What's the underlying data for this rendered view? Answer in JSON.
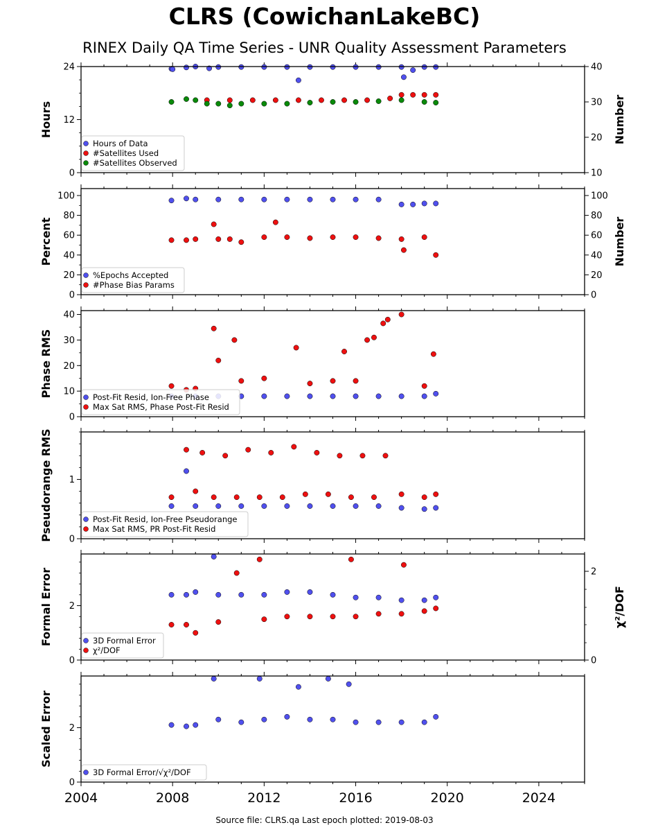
{
  "title": "CLRS (CowichanLakeBC)",
  "subtitle": "RINEX Daily QA Time Series - UNR Quality Assessment Parameters",
  "footer": "Source file: CLRS.qa Last epoch plotted: 2019-08-03",
  "colors": {
    "blue": "#5050ee",
    "red": "#ee1010",
    "green": "#0a8a0a",
    "edge": "#000000"
  },
  "chart_data": [
    {
      "type": "scatter",
      "xlim": [
        2004,
        2026
      ],
      "x_ticks": [
        2004,
        2008,
        2012,
        2016,
        2020,
        2024
      ],
      "x_tick_labels": [],
      "ylabel": "Hours",
      "ylim": [
        0,
        24
      ],
      "y_ticks": [
        0,
        12,
        24
      ],
      "y2label": "Number",
      "y2lim": [
        10,
        40
      ],
      "y2_ticks": [
        10,
        20,
        30,
        40
      ],
      "legend": "lower-left",
      "series": [
        {
          "name": "Hours of Data",
          "color": "blue",
          "axis": "left",
          "values": [
            [
              2007.95,
              23.5
            ],
            [
              2008.0,
              23.4
            ],
            [
              2008.6,
              23.8
            ],
            [
              2009.0,
              24.0
            ],
            [
              2009.6,
              23.6
            ],
            [
              2010.0,
              23.9
            ],
            [
              2011.0,
              23.9
            ],
            [
              2012.0,
              23.9
            ],
            [
              2013.0,
              23.9
            ],
            [
              2013.5,
              20.9
            ],
            [
              2014.0,
              23.9
            ],
            [
              2015.0,
              23.9
            ],
            [
              2016.0,
              23.9
            ],
            [
              2017.0,
              23.9
            ],
            [
              2018.0,
              23.9
            ],
            [
              2018.1,
              21.6
            ],
            [
              2018.5,
              23.2
            ],
            [
              2019.0,
              23.9
            ],
            [
              2019.5,
              23.9
            ]
          ]
        },
        {
          "name": "#Satellites Used",
          "color": "red",
          "axis": "right",
          "values": [
            [
              2009.5,
              30.5
            ],
            [
              2010.5,
              30.5
            ],
            [
              2011.5,
              30.5
            ],
            [
              2012.5,
              30.5
            ],
            [
              2013.5,
              30.5
            ],
            [
              2014.5,
              30.5
            ],
            [
              2015.5,
              30.5
            ],
            [
              2016.5,
              30.5
            ],
            [
              2017.5,
              31.0
            ],
            [
              2018.0,
              32.0
            ],
            [
              2018.5,
              32.0
            ],
            [
              2019.0,
              32.0
            ],
            [
              2019.5,
              32.0
            ]
          ]
        },
        {
          "name": "#Satellites Observed",
          "color": "green",
          "axis": "right",
          "values": [
            [
              2007.95,
              30.0
            ],
            [
              2008.6,
              30.8
            ],
            [
              2009.0,
              30.5
            ],
            [
              2009.5,
              29.5
            ],
            [
              2010.0,
              29.5
            ],
            [
              2010.5,
              29.0
            ],
            [
              2011.0,
              29.5
            ],
            [
              2012.0,
              29.5
            ],
            [
              2013.0,
              29.5
            ],
            [
              2014.0,
              29.8
            ],
            [
              2015.0,
              30.0
            ],
            [
              2016.0,
              30.0
            ],
            [
              2017.0,
              30.2
            ],
            [
              2018.0,
              30.5
            ],
            [
              2019.0,
              30.0
            ],
            [
              2019.5,
              29.8
            ]
          ]
        }
      ]
    },
    {
      "type": "scatter",
      "xlim": [
        2004,
        2026
      ],
      "x_ticks": [
        2004,
        2008,
        2012,
        2016,
        2020,
        2024
      ],
      "x_tick_labels": [],
      "ylabel": "Percent",
      "ylim": [
        0,
        107
      ],
      "y_ticks": [
        0,
        20,
        40,
        60,
        80,
        100
      ],
      "y2label": "Number",
      "y2lim": [
        0,
        107
      ],
      "y2_ticks": [
        0,
        20,
        40,
        60,
        80,
        100
      ],
      "legend": "lower-left",
      "series": [
        {
          "name": "%Epochs Accepted",
          "color": "blue",
          "axis": "left",
          "values": [
            [
              2007.95,
              95
            ],
            [
              2008.6,
              97
            ],
            [
              2009.0,
              96
            ],
            [
              2010.0,
              96
            ],
            [
              2011.0,
              96
            ],
            [
              2012.0,
              96
            ],
            [
              2013.0,
              96
            ],
            [
              2014.0,
              96
            ],
            [
              2015.0,
              96
            ],
            [
              2016.0,
              96
            ],
            [
              2017.0,
              96
            ],
            [
              2018.0,
              91
            ],
            [
              2018.5,
              91
            ],
            [
              2019.0,
              92
            ],
            [
              2019.5,
              92
            ]
          ]
        },
        {
          "name": "#Phase Bias Params",
          "color": "red",
          "axis": "right",
          "values": [
            [
              2007.95,
              55
            ],
            [
              2008.6,
              55
            ],
            [
              2009.0,
              56
            ],
            [
              2009.8,
              71
            ],
            [
              2010.0,
              56
            ],
            [
              2010.5,
              56
            ],
            [
              2011.0,
              53
            ],
            [
              2012.0,
              58
            ],
            [
              2012.5,
              73
            ],
            [
              2013.0,
              58
            ],
            [
              2014.0,
              57
            ],
            [
              2015.0,
              58
            ],
            [
              2016.0,
              58
            ],
            [
              2017.0,
              57
            ],
            [
              2018.0,
              56
            ],
            [
              2018.1,
              45
            ],
            [
              2019.0,
              58
            ],
            [
              2019.5,
              40
            ]
          ]
        }
      ]
    },
    {
      "type": "scatter",
      "xlim": [
        2004,
        2026
      ],
      "x_ticks": [
        2004,
        2008,
        2012,
        2016,
        2020,
        2024
      ],
      "x_tick_labels": [],
      "ylabel": "Phase RMS",
      "ylim": [
        0,
        41.5
      ],
      "y_ticks": [
        0,
        10,
        20,
        30,
        40
      ],
      "legend": "lower-left",
      "series": [
        {
          "name": "Post-Fit Resid, Ion-Free Phase",
          "color": "blue",
          "axis": "left",
          "values": [
            [
              2007.95,
              8
            ],
            [
              2009.0,
              8
            ],
            [
              2010.0,
              8
            ],
            [
              2011.0,
              8
            ],
            [
              2012.0,
              8
            ],
            [
              2013.0,
              8
            ],
            [
              2014.0,
              8
            ],
            [
              2015.0,
              8
            ],
            [
              2016.0,
              8
            ],
            [
              2017.0,
              8
            ],
            [
              2018.0,
              8
            ],
            [
              2019.0,
              8
            ],
            [
              2019.5,
              9
            ]
          ]
        },
        {
          "name": "Max Sat RMS, Phase Post-Fit Resid",
          "color": "red",
          "axis": "left",
          "values": [
            [
              2007.95,
              12
            ],
            [
              2008.6,
              10.5
            ],
            [
              2009.0,
              11
            ],
            [
              2009.8,
              34.5
            ],
            [
              2010.0,
              22
            ],
            [
              2010.7,
              30
            ],
            [
              2011.0,
              14
            ],
            [
              2012.0,
              15
            ],
            [
              2013.4,
              27
            ],
            [
              2014.0,
              13
            ],
            [
              2015.0,
              14
            ],
            [
              2015.5,
              25.5
            ],
            [
              2016.0,
              14
            ],
            [
              2016.5,
              30
            ],
            [
              2016.8,
              31
            ],
            [
              2017.2,
              36.5
            ],
            [
              2017.4,
              38
            ],
            [
              2018.0,
              40
            ],
            [
              2019.0,
              12
            ],
            [
              2019.4,
              24.5
            ]
          ]
        }
      ]
    },
    {
      "type": "scatter",
      "xlim": [
        2004,
        2026
      ],
      "x_ticks": [
        2004,
        2008,
        2012,
        2016,
        2020,
        2024
      ],
      "x_tick_labels": [],
      "ylabel": "Pseudorange RMS",
      "ylim": [
        0,
        1.8
      ],
      "y_ticks": [
        0,
        1
      ],
      "legend": "lower-left",
      "series": [
        {
          "name": "Post-Fit Resid, Ion-Free Pseudorange",
          "color": "blue",
          "axis": "left",
          "values": [
            [
              2007.95,
              0.55
            ],
            [
              2008.6,
              1.14
            ],
            [
              2009.0,
              0.55
            ],
            [
              2010.0,
              0.55
            ],
            [
              2011.0,
              0.55
            ],
            [
              2012.0,
              0.55
            ],
            [
              2013.0,
              0.55
            ],
            [
              2014.0,
              0.55
            ],
            [
              2015.0,
              0.55
            ],
            [
              2016.0,
              0.55
            ],
            [
              2017.0,
              0.55
            ],
            [
              2018.0,
              0.52
            ],
            [
              2019.0,
              0.5
            ],
            [
              2019.5,
              0.52
            ]
          ]
        },
        {
          "name": "Max Sat RMS, PR Post-Fit Resid",
          "color": "red",
          "axis": "left",
          "values": [
            [
              2007.95,
              0.7
            ],
            [
              2008.6,
              1.5
            ],
            [
              2009.0,
              0.8
            ],
            [
              2009.3,
              1.45
            ],
            [
              2009.8,
              0.7
            ],
            [
              2010.3,
              1.4
            ],
            [
              2010.8,
              0.7
            ],
            [
              2011.3,
              1.5
            ],
            [
              2011.8,
              0.7
            ],
            [
              2012.3,
              1.45
            ],
            [
              2012.8,
              0.7
            ],
            [
              2013.3,
              1.55
            ],
            [
              2013.8,
              0.75
            ],
            [
              2014.3,
              1.45
            ],
            [
              2014.8,
              0.75
            ],
            [
              2015.3,
              1.4
            ],
            [
              2015.8,
              0.7
            ],
            [
              2016.3,
              1.4
            ],
            [
              2016.8,
              0.7
            ],
            [
              2017.3,
              1.4
            ],
            [
              2018.0,
              0.75
            ],
            [
              2019.0,
              0.7
            ],
            [
              2019.5,
              0.75
            ]
          ]
        }
      ]
    },
    {
      "type": "scatter",
      "xlim": [
        2004,
        2026
      ],
      "x_ticks": [
        2004,
        2008,
        2012,
        2016,
        2020,
        2024
      ],
      "x_tick_labels": [],
      "ylabel": "Formal Error",
      "ylim": [
        0,
        3.9
      ],
      "y_ticks": [
        0,
        2
      ],
      "y2label": "χ²/DOF",
      "y2_tick_labels": [
        "0",
        "2"
      ],
      "legend": "lower-left",
      "series": [
        {
          "name": "3D Formal Error",
          "color": "blue",
          "axis": "left",
          "values": [
            [
              2007.95,
              2.4
            ],
            [
              2008.6,
              2.4
            ],
            [
              2009.0,
              2.5
            ],
            [
              2009.8,
              3.8
            ],
            [
              2010.0,
              2.4
            ],
            [
              2011.0,
              2.4
            ],
            [
              2012.0,
              2.4
            ],
            [
              2013.0,
              2.5
            ],
            [
              2014.0,
              2.5
            ],
            [
              2015.0,
              2.4
            ],
            [
              2016.0,
              2.3
            ],
            [
              2017.0,
              2.3
            ],
            [
              2018.0,
              2.2
            ],
            [
              2019.0,
              2.2
            ],
            [
              2019.5,
              2.3
            ]
          ]
        },
        {
          "name": "χ²/DOF",
          "color": "red",
          "axis": "left",
          "values": [
            [
              2007.95,
              1.3
            ],
            [
              2008.6,
              1.3
            ],
            [
              2009.0,
              1.0
            ],
            [
              2010.0,
              1.4
            ],
            [
              2010.8,
              3.2
            ],
            [
              2011.8,
              3.7
            ],
            [
              2012.0,
              1.5
            ],
            [
              2013.0,
              1.6
            ],
            [
              2014.0,
              1.6
            ],
            [
              2015.0,
              1.6
            ],
            [
              2015.8,
              3.7
            ],
            [
              2016.0,
              1.6
            ],
            [
              2017.0,
              1.7
            ],
            [
              2018.0,
              1.7
            ],
            [
              2018.1,
              3.5
            ],
            [
              2019.0,
              1.8
            ],
            [
              2019.5,
              1.9
            ]
          ]
        }
      ]
    },
    {
      "type": "scatter",
      "xlim": [
        2004,
        2026
      ],
      "x_ticks": [
        2004,
        2008,
        2012,
        2016,
        2020,
        2024
      ],
      "x_tick_labels": [
        "2004",
        "2008",
        "2012",
        "2016",
        "2020",
        "2024"
      ],
      "ylabel": "Scaled Error",
      "ylim": [
        0,
        3.9
      ],
      "y_ticks": [
        0,
        2
      ],
      "legend": "lower-left",
      "series": [
        {
          "name": "3D Formal Error/√χ²/DOF",
          "color": "blue",
          "axis": "left",
          "values": [
            [
              2007.95,
              2.1
            ],
            [
              2008.6,
              2.05
            ],
            [
              2009.0,
              2.1
            ],
            [
              2009.8,
              3.8
            ],
            [
              2010.0,
              2.3
            ],
            [
              2011.0,
              2.2
            ],
            [
              2011.8,
              3.8
            ],
            [
              2012.0,
              2.3
            ],
            [
              2013.0,
              2.4
            ],
            [
              2013.5,
              3.5
            ],
            [
              2014.0,
              2.3
            ],
            [
              2014.8,
              3.8
            ],
            [
              2015.0,
              2.3
            ],
            [
              2015.7,
              3.6
            ],
            [
              2016.0,
              2.2
            ],
            [
              2017.0,
              2.2
            ],
            [
              2018.0,
              2.2
            ],
            [
              2019.0,
              2.2
            ],
            [
              2019.5,
              2.4
            ]
          ]
        }
      ]
    }
  ]
}
